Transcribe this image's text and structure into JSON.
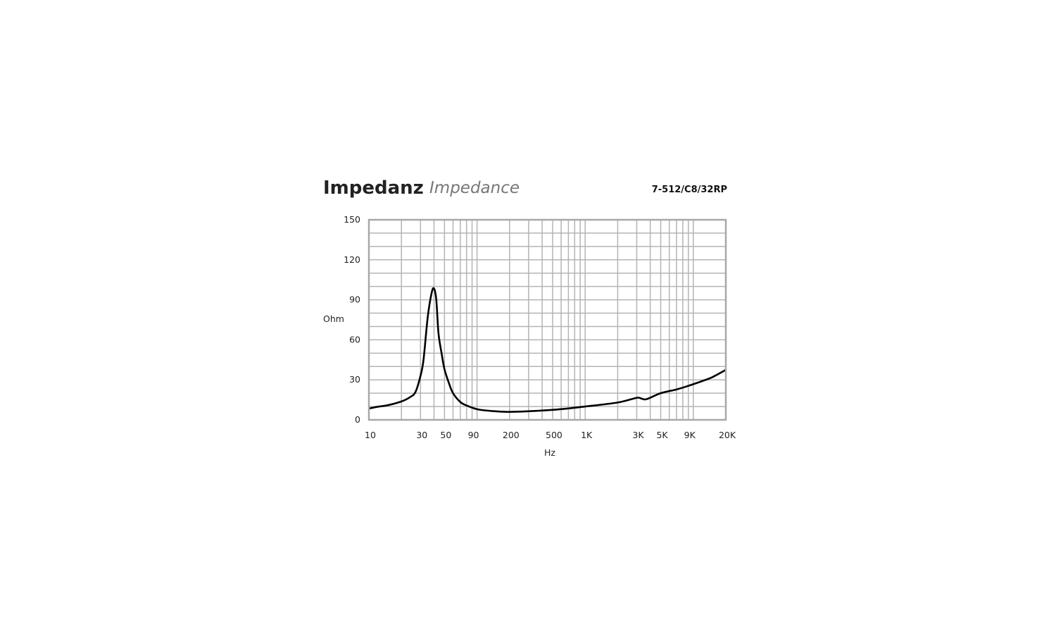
{
  "chart_data": {
    "type": "line",
    "title": "Impedanz",
    "subtitle": "Impedance",
    "model": "7-512/C8/32RP",
    "xlabel": "Hz",
    "ylabel": "Ohm",
    "xscale": "log",
    "xlim": [
      10,
      20000
    ],
    "ylim": [
      0,
      150
    ],
    "grid": true,
    "x_ticks": [
      {
        "v": 10,
        "l": "10"
      },
      {
        "v": 30,
        "l": "30"
      },
      {
        "v": 50,
        "l": "50"
      },
      {
        "v": 90,
        "l": "90"
      },
      {
        "v": 200,
        "l": "200"
      },
      {
        "v": 500,
        "l": "500"
      },
      {
        "v": 1000,
        "l": "1K"
      },
      {
        "v": 3000,
        "l": "3K"
      },
      {
        "v": 5000,
        "l": "5K"
      },
      {
        "v": 9000,
        "l": "9K"
      },
      {
        "v": 20000,
        "l": "20K"
      }
    ],
    "y_ticks": [
      0,
      30,
      60,
      90,
      120,
      150
    ],
    "series": [
      {
        "name": "Impedance",
        "x": [
          10,
          12,
          15,
          20,
          24,
          27,
          30,
          32,
          35,
          38,
          40,
          42,
          44,
          47,
          50,
          55,
          60,
          70,
          80,
          100,
          130,
          200,
          500,
          1000,
          2000,
          3000,
          3300,
          3700,
          5000,
          7000,
          9000,
          12000,
          15000,
          20000
        ],
        "y": [
          8.5,
          9.8,
          11,
          13.8,
          17,
          21,
          33,
          45,
          77,
          95,
          98.5,
          90,
          65,
          50,
          38,
          27.5,
          20,
          13.4,
          10.8,
          8,
          6.8,
          6,
          7.5,
          10,
          13,
          16.5,
          16,
          15.5,
          20,
          22.8,
          25.5,
          29,
          32,
          37.5
        ]
      }
    ]
  }
}
